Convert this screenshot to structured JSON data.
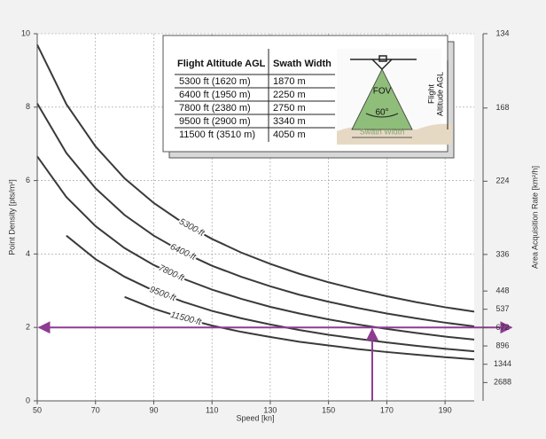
{
  "chart_data": {
    "type": "line",
    "x_label": "Speed [kn]",
    "y_label": "Point Density [pts/m²]",
    "y2_label": "Area Acquisition Rate  [km²/h]",
    "x": [
      50,
      60,
      70,
      80,
      90,
      100,
      110,
      120,
      130,
      140,
      150,
      160,
      170,
      180,
      190,
      200
    ],
    "series": [
      {
        "name": "5300 ft",
        "color": "#3a3a3a",
        "values": [
          9.7,
          8.08,
          6.93,
          6.06,
          5.39,
          4.85,
          4.41,
          4.04,
          3.73,
          3.46,
          3.23,
          3.03,
          2.85,
          2.69,
          2.55,
          2.43
        ]
      },
      {
        "name": "6400 ft",
        "color": "#3a3a3a",
        "values": [
          8.1,
          6.75,
          5.79,
          5.06,
          4.5,
          4.05,
          3.68,
          3.38,
          3.12,
          2.89,
          2.7,
          2.53,
          2.38,
          2.25,
          2.13,
          2.03
        ]
      },
      {
        "name": "7800 ft",
        "color": "#3a3a3a",
        "values": [
          6.66,
          5.55,
          4.76,
          4.16,
          3.7,
          3.33,
          3.03,
          2.78,
          2.56,
          2.38,
          2.22,
          2.08,
          1.96,
          1.85,
          1.75,
          1.67
        ]
      },
      {
        "name": "9500 ft",
        "color": "#3a3a3a",
        "values": [
          null,
          4.5,
          3.86,
          3.38,
          3.0,
          2.7,
          2.45,
          2.25,
          2.08,
          1.93,
          1.8,
          1.69,
          1.59,
          1.5,
          1.42,
          1.35
        ]
      },
      {
        "name": "11500 ft",
        "color": "#3a3a3a",
        "values": [
          null,
          null,
          null,
          2.83,
          2.51,
          2.26,
          2.05,
          1.88,
          1.74,
          1.61,
          1.51,
          1.41,
          1.33,
          1.26,
          1.19,
          1.13
        ]
      }
    ],
    "xlim": [
      50,
      200
    ],
    "xticks": [
      50,
      70,
      90,
      110,
      130,
      150,
      170,
      190
    ],
    "ylim": [
      0,
      10
    ],
    "yticks": [
      0,
      2,
      4,
      6,
      8,
      10
    ],
    "y2scale": "reciprocal",
    "y2ticks": [
      134,
      168,
      224,
      336,
      448,
      537,
      672,
      896,
      1344,
      2688
    ],
    "grid": true,
    "reference_lines": [
      {
        "axis": "y",
        "value": 2,
        "color": "#8e3b94"
      },
      {
        "axis": "x",
        "value": 165,
        "color": "#8e3b94"
      }
    ],
    "inset": {
      "headers": [
        "Flight Altitude AGL",
        "Swath Width"
      ],
      "rows": [
        [
          "5300 ft (1620 m)",
          "1870 m"
        ],
        [
          "6400 ft (1950 m)",
          "2250 m"
        ],
        [
          "7800 ft (2380 m)",
          "2750 m"
        ],
        [
          "9500 ft (2900 m)",
          "3340 m"
        ],
        [
          "11500 ft (3510 m)",
          "4050 m"
        ]
      ],
      "diagram": {
        "fov": "FOV",
        "angle": "60°",
        "altitude": [
          "Flight",
          "Altitude AGL"
        ],
        "swath": "Swath Width"
      }
    }
  }
}
